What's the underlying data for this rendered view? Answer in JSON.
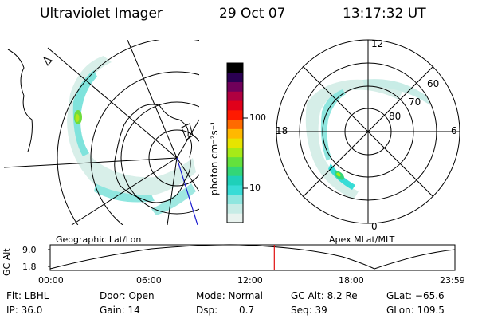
{
  "header": {
    "instrument": "Ultraviolet Imager",
    "date": "29 Oct 07",
    "time": "13:17:32 UT"
  },
  "left_panel": {
    "caption": "Geographic Lat/Lon"
  },
  "right_panel": {
    "caption": "Apex  MLat/MLT",
    "mlt_labels": {
      "top": "12",
      "bottom": "0",
      "left": "18",
      "right": "6"
    },
    "mlat_labels": [
      "60",
      "70",
      "80"
    ]
  },
  "colorbar": {
    "label": "photon cm⁻²s⁻¹",
    "ticks": [
      "100",
      "10"
    ],
    "colors": [
      "#e9f3ef",
      "#c7ece6",
      "#8fe6df",
      "#38dcd6",
      "#1fd0b9",
      "#33d677",
      "#63e13d",
      "#a6ea17",
      "#e7e400",
      "#ffb800",
      "#ff6a00",
      "#ff1a00",
      "#e0001a",
      "#b00040",
      "#70005a",
      "#2a0052",
      "#000000"
    ]
  },
  "timeline": {
    "axis_label": "GC Alt",
    "y_ticks": [
      "9.0",
      "1.8"
    ],
    "x_ticks": [
      "00:00",
      "06:00",
      "12:00",
      "18:00",
      "23:59"
    ],
    "current_marker_hours": 13.29
  },
  "info": {
    "flt": "Flt: LBHL",
    "ip": "IP: 36.0",
    "door": "Door: Open",
    "gain": "Gain: 14",
    "mode": "Mode: Normal",
    "dsp_label": "Dsp:",
    "dsp_value": "0.7",
    "gc_alt": "GC Alt: 8.2 Re",
    "seq": "Seq: 39",
    "glat": "GLat: −65.6",
    "glon": "GLon: 109.5"
  }
}
